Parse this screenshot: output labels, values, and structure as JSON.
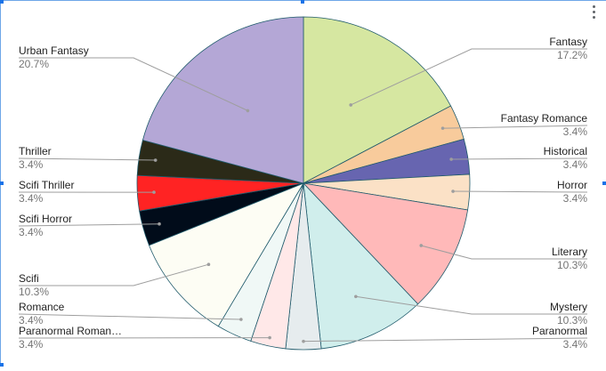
{
  "menu": {
    "icon": "more-vert-icon"
  },
  "chart_data": {
    "type": "pie",
    "title": "",
    "legend": "labels",
    "slices": [
      {
        "label": "Fantasy",
        "percent_label": "17.2%",
        "value": 17.2,
        "color": "#d6e7a1"
      },
      {
        "label": "Fantasy Romance",
        "percent_label": "3.4%",
        "value": 3.4,
        "color": "#f8cb9c"
      },
      {
        "label": "Historical",
        "percent_label": "3.4%",
        "value": 3.4,
        "color": "#6765b0"
      },
      {
        "label": "Horror",
        "percent_label": "3.4%",
        "value": 3.4,
        "color": "#fbe1c6"
      },
      {
        "label": "Literary",
        "percent_label": "10.3%",
        "value": 10.3,
        "color": "#ffb9b9"
      },
      {
        "label": "Mystery",
        "percent_label": "10.3%",
        "value": 10.3,
        "color": "#d0eeec"
      },
      {
        "label": "Paranormal",
        "percent_label": "3.4%",
        "value": 3.4,
        "color": "#e6ecee"
      },
      {
        "label": "Paranormal Roman…",
        "percent_label": "3.4%",
        "value": 3.4,
        "color": "#ffe8e8"
      },
      {
        "label": "Romance",
        "percent_label": "3.4%",
        "value": 3.4,
        "color": "#f0f8f6"
      },
      {
        "label": "Scifi",
        "percent_label": "10.3%",
        "value": 10.3,
        "color": "#fdfdf4"
      },
      {
        "label": "Scifi Horror",
        "percent_label": "3.4%",
        "value": 3.4,
        "color": "#010c1a"
      },
      {
        "label": "Scifi Thriller",
        "percent_label": "3.4%",
        "value": 3.4,
        "color": "#ff2323"
      },
      {
        "label": "Thriller",
        "percent_label": "3.4%",
        "value": 3.4,
        "color": "#2b2a18"
      },
      {
        "label": "Urban Fantasy",
        "percent_label": "20.7%",
        "value": 20.7,
        "color": "#b4a7d6"
      }
    ]
  }
}
